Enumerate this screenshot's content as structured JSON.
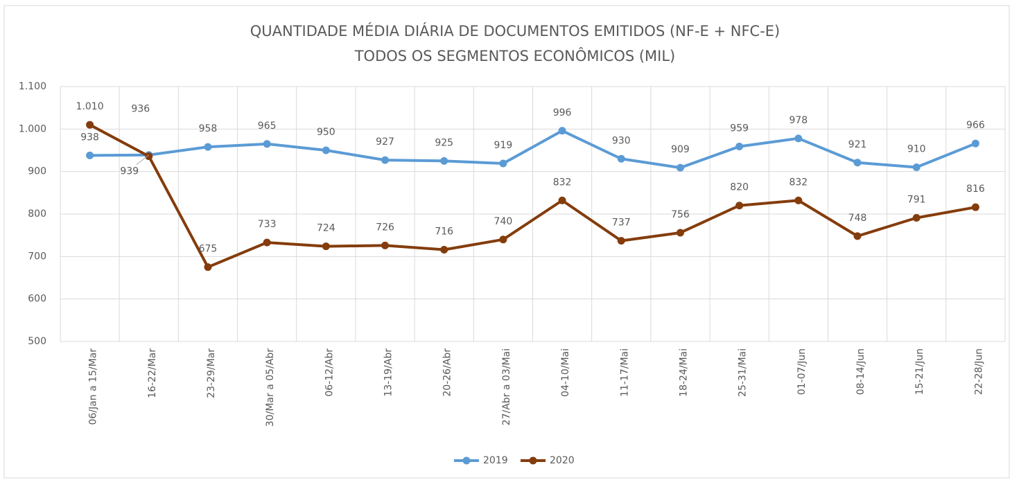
{
  "chart_data": {
    "type": "line",
    "title": "QUANTIDADE MÉDIA DIÁRIA DE DOCUMENTOS EMITIDOS (NF-E + NFC-E)",
    "subtitle": "TODOS OS SEGMENTOS ECONÔMICOS (MIL)",
    "categories": [
      "06/Jan a 15/Mar",
      "16-22/Mar",
      "23-29/Mar",
      "30/Mar a 05/Abr",
      "06-12/Abr",
      "13-19/Abr",
      "20-26/Abr",
      "27/Abr a 03/Mai",
      "04-10/Mai",
      "11-17/Mai",
      "18-24/Mai",
      "25-31/Mai",
      "01-07/Jun",
      "08-14/Jun",
      "15-21/Jun",
      "22-28/Jun"
    ],
    "series": [
      {
        "name": "2019",
        "color": "#5b9bd5",
        "values": [
          938,
          939,
          958,
          965,
          950,
          927,
          925,
          919,
          996,
          930,
          909,
          959,
          978,
          921,
          910,
          966
        ]
      },
      {
        "name": "2020",
        "color": "#843c0c",
        "values": [
          1010,
          936,
          675,
          733,
          724,
          726,
          716,
          740,
          832,
          737,
          756,
          820,
          832,
          748,
          791,
          816
        ],
        "value_labels": [
          "1.010",
          "936",
          "675",
          "733",
          "724",
          "726",
          "716",
          "740",
          "832",
          "737",
          "756",
          "820",
          "832",
          "748",
          "791",
          "816"
        ]
      }
    ],
    "ylim": [
      500,
      1100
    ],
    "yticks": [
      500,
      600,
      700,
      800,
      900,
      {
        "value": 1000,
        "label": "1.000"
      },
      {
        "value": 1100,
        "label": "1.100"
      }
    ],
    "grid": true,
    "legend": "bottom"
  }
}
